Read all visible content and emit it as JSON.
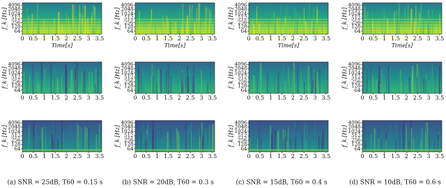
{
  "axes": {
    "x_label": "Time[s]",
    "y_label": "f_k [Hz]",
    "xlim": [
      0,
      3.6
    ],
    "xticks": [
      0,
      0.5,
      1,
      1.5,
      2,
      2.5,
      3,
      3.5
    ],
    "ylim": [
      40,
      6000
    ],
    "yticks": [
      64,
      128,
      256,
      512,
      1024,
      2048,
      4096
    ]
  },
  "captions": [
    "(a) SNR = 25dB, T60 = 0.15 s",
    "(b) SNR = 20dB, T60 = 0.3 s",
    "(c) SNR = 15dB, T60 = 0.4 s",
    "(d) SNR = 10dB, T60 = 0.6 s"
  ]
}
